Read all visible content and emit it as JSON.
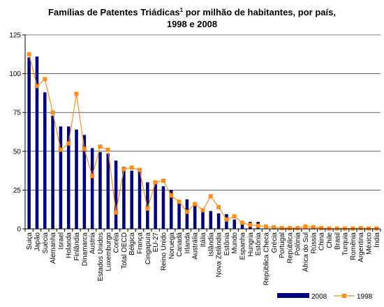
{
  "chart_data": {
    "type": "bar",
    "title_line1": "Famílias de Patentes Triádicas",
    "title_footnote": "1",
    "title_line1_end": " por milhão de habitantes, por país,",
    "title_line2": "1998 e 2008",
    "xlabel": "",
    "ylabel": "",
    "ylim": [
      0,
      125
    ],
    "yticks": [
      "0",
      "25",
      "50",
      "75",
      "100",
      "125"
    ],
    "legend_position": "bottom-right",
    "categories": [
      "Suiça",
      "Japão",
      "Suécia",
      "Alemanha",
      "Israel",
      "Holanda",
      "Finlândia",
      "Dinamarca",
      "Austria",
      "Estados Unidos",
      "Luxemburgo",
      "Coréia",
      "Total OECD",
      "Bélgica",
      "França",
      "Cingapura",
      "EU-27",
      "Reino Unido",
      "Noruega",
      "Canadá",
      "Irlanda",
      "Austrália",
      "Itália",
      "Islândia",
      "Nova Zelândia",
      "Estônia",
      "Mundo",
      "Espanha",
      "Hungria",
      "Estônia",
      "República Checa",
      "Grécia",
      "Portugal",
      "República",
      "Polônia",
      "África do Sul",
      "Rússia",
      "China",
      "Chile",
      "Brasil",
      "Turquia",
      "Romênia",
      "Argentina",
      "México",
      "Índia"
    ],
    "series": [
      {
        "name": "2008",
        "kind": "bar",
        "color": "#000080",
        "values": [
          110.5,
          111,
          88,
          73,
          66,
          66,
          64,
          60.5,
          52,
          49.5,
          48.5,
          44,
          40,
          37.5,
          37.5,
          30,
          29,
          27.5,
          25,
          18,
          19,
          16,
          12,
          11.5,
          10,
          9.5,
          6,
          5,
          4.5,
          4.5,
          2,
          1.5,
          1,
          1,
          0.5,
          1,
          0.5,
          0.5,
          0.2,
          0.2,
          0.2,
          0.2,
          0.2,
          0.2,
          0.2
        ]
      },
      {
        "name": "1998",
        "kind": "line",
        "color": "#FF8C1A",
        "values": [
          112.5,
          92,
          96.5,
          75,
          51,
          55,
          87,
          51.5,
          34,
          53,
          51,
          10.5,
          38.5,
          39.5,
          38,
          13,
          30,
          31,
          21.5,
          17.5,
          11,
          16,
          12,
          21,
          14,
          6,
          8,
          4,
          2.5,
          2,
          1.5,
          1,
          0.5,
          0.5,
          0.5,
          1.5,
          1,
          0.5,
          0.2,
          0.2,
          0.2,
          0.2,
          0.5,
          0.2,
          0.2
        ]
      }
    ]
  }
}
